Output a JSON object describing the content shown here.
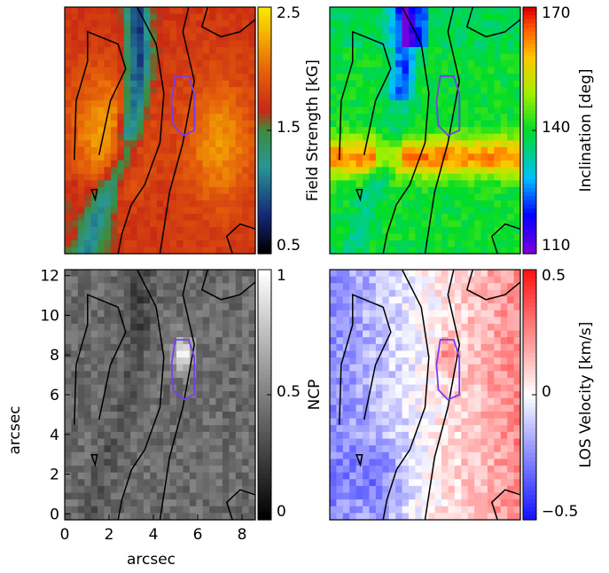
{
  "chart_data": [
    {
      "type": "heatmap",
      "panel": "top-left",
      "colorbar": {
        "label": "Field Strength [kG]",
        "ticks": [
          "2.5",
          "1.5",
          "0.5"
        ],
        "range": [
          0.5,
          2.5
        ],
        "colormap": "stern-special"
      },
      "xlabel": "",
      "ylabel": "",
      "xticks": [],
      "yticks": []
    },
    {
      "type": "heatmap",
      "panel": "top-right",
      "colorbar": {
        "label": "Inclination [deg]",
        "ticks": [
          "170",
          "140",
          "110"
        ],
        "range": [
          110,
          170
        ],
        "colormap": "rainbow"
      },
      "xlabel": "",
      "ylabel": "",
      "xticks": [],
      "yticks": []
    },
    {
      "type": "heatmap",
      "panel": "bottom-left",
      "colorbar": {
        "label": "",
        "ticks": [
          "1",
          "0.5",
          "0"
        ],
        "range": [
          0,
          1
        ],
        "colormap": "gray"
      },
      "xlabel": "arcsec",
      "ylabel": "arcsec",
      "xticks": [
        "0",
        "2",
        "4",
        "6",
        "8"
      ],
      "yticks": [
        "0",
        "2",
        "4",
        "6",
        "8",
        "10",
        "12"
      ],
      "xlim": [
        0,
        8.6
      ],
      "ylim": [
        -0.3,
        12.3
      ]
    },
    {
      "type": "heatmap",
      "panel": "bottom-right",
      "ylabel": "NCP",
      "colorbar": {
        "label": "LOS Velocity [km/s]",
        "ticks": [
          "0.5",
          "0",
          "−0.5"
        ],
        "range": [
          -0.5,
          0.5
        ],
        "colormap": "blue-white-red"
      },
      "xlabel": "",
      "xticks": [],
      "yticks": []
    }
  ],
  "colors": {
    "contour_black": "#000000",
    "contour_purple": "#7a3cf0"
  }
}
